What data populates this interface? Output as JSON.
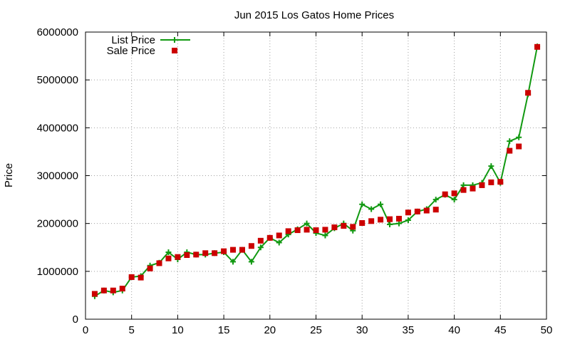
{
  "chart_data": {
    "type": "line",
    "title": "Jun 2015 Los Gatos Home Prices",
    "xlabel": "",
    "ylabel": "Price",
    "xlim": [
      0,
      50
    ],
    "ylim": [
      0,
      6000000
    ],
    "x_ticks": [
      0,
      5,
      10,
      15,
      20,
      25,
      30,
      35,
      40,
      45,
      50
    ],
    "y_ticks": [
      0,
      1000000,
      2000000,
      3000000,
      4000000,
      5000000,
      6000000
    ],
    "x_tick_labels": [
      "0",
      "5",
      "10",
      "15",
      "20",
      "25",
      "30",
      "35",
      "40",
      "45",
      "50"
    ],
    "y_tick_labels": [
      "0",
      "1000000",
      "2000000",
      "3000000",
      "4000000",
      "5000000",
      "6000000"
    ],
    "grid": true,
    "legend_position": "top-left",
    "x": [
      1,
      2,
      3,
      4,
      5,
      6,
      7,
      8,
      9,
      10,
      11,
      12,
      13,
      14,
      15,
      16,
      17,
      18,
      19,
      20,
      21,
      22,
      23,
      24,
      25,
      26,
      27,
      28,
      29,
      30,
      31,
      32,
      33,
      34,
      35,
      36,
      37,
      38,
      39,
      40,
      41,
      42,
      43,
      44,
      45,
      46,
      47,
      48,
      49
    ],
    "series": [
      {
        "name": "List Price",
        "style": "linespoints",
        "color": "#119911",
        "marker": "plus",
        "values": [
          480000,
          600000,
          560000,
          600000,
          880000,
          900000,
          1120000,
          1180000,
          1400000,
          1250000,
          1400000,
          1350000,
          1350000,
          1380000,
          1400000,
          1200000,
          1450000,
          1200000,
          1500000,
          1700000,
          1600000,
          1770000,
          1880000,
          2000000,
          1800000,
          1750000,
          1900000,
          2000000,
          1850000,
          2400000,
          2300000,
          2400000,
          1980000,
          2000000,
          2070000,
          2250000,
          2300000,
          2500000,
          2600000,
          2500000,
          2800000,
          2800000,
          2850000,
          3200000,
          2850000,
          3720000,
          3800000,
          4700000,
          5700000
        ]
      },
      {
        "name": "Sale Price",
        "style": "points",
        "color": "#cc0000",
        "marker": "square",
        "values": [
          530000,
          600000,
          600000,
          640000,
          880000,
          870000,
          1060000,
          1170000,
          1270000,
          1300000,
          1340000,
          1350000,
          1380000,
          1380000,
          1420000,
          1450000,
          1450000,
          1530000,
          1640000,
          1700000,
          1750000,
          1840000,
          1860000,
          1870000,
          1860000,
          1870000,
          1920000,
          1950000,
          1930000,
          2010000,
          2050000,
          2080000,
          2090000,
          2100000,
          2230000,
          2250000,
          2270000,
          2290000,
          2610000,
          2630000,
          2700000,
          2730000,
          2800000,
          2860000,
          2870000,
          3520000,
          3610000,
          4730000,
          5690000
        ]
      }
    ]
  }
}
